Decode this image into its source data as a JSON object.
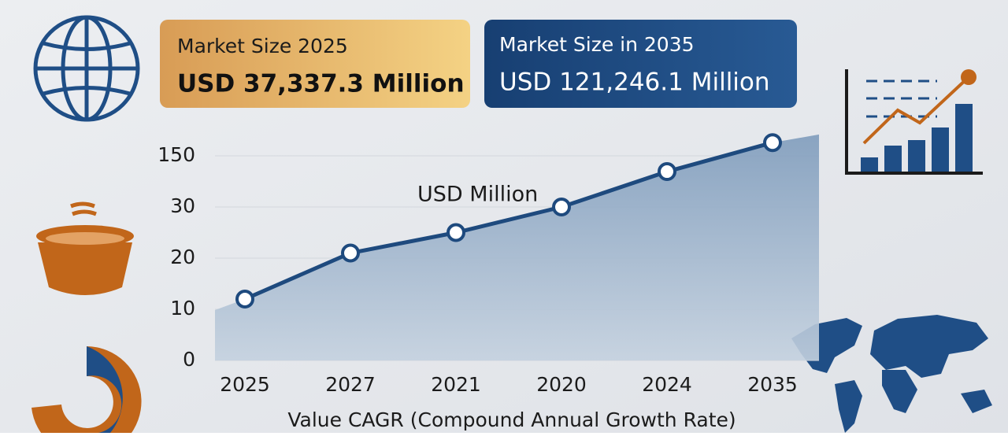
{
  "cards": [
    {
      "title": "Market Size 2025",
      "value": "USD 37,337.3 Million"
    },
    {
      "title": "Market Size in 2035",
      "value": "USD 121,246.1 Million"
    }
  ],
  "chart_data": {
    "type": "line",
    "annotation": "USD Million",
    "x_label": "Value CAGR (Compound Annual Growth Rate)",
    "categories": [
      "2025",
      "2027",
      "2021",
      "2020",
      "2024",
      "2035"
    ],
    "values": [
      12,
      21,
      25,
      30,
      113,
      181
    ],
    "color": "#1e4a7e",
    "area_color": "#8fa9c4",
    "ylim": [
      0,
      200
    ],
    "yticks": [
      0,
      10,
      20,
      30,
      150
    ],
    "grid": true
  }
}
